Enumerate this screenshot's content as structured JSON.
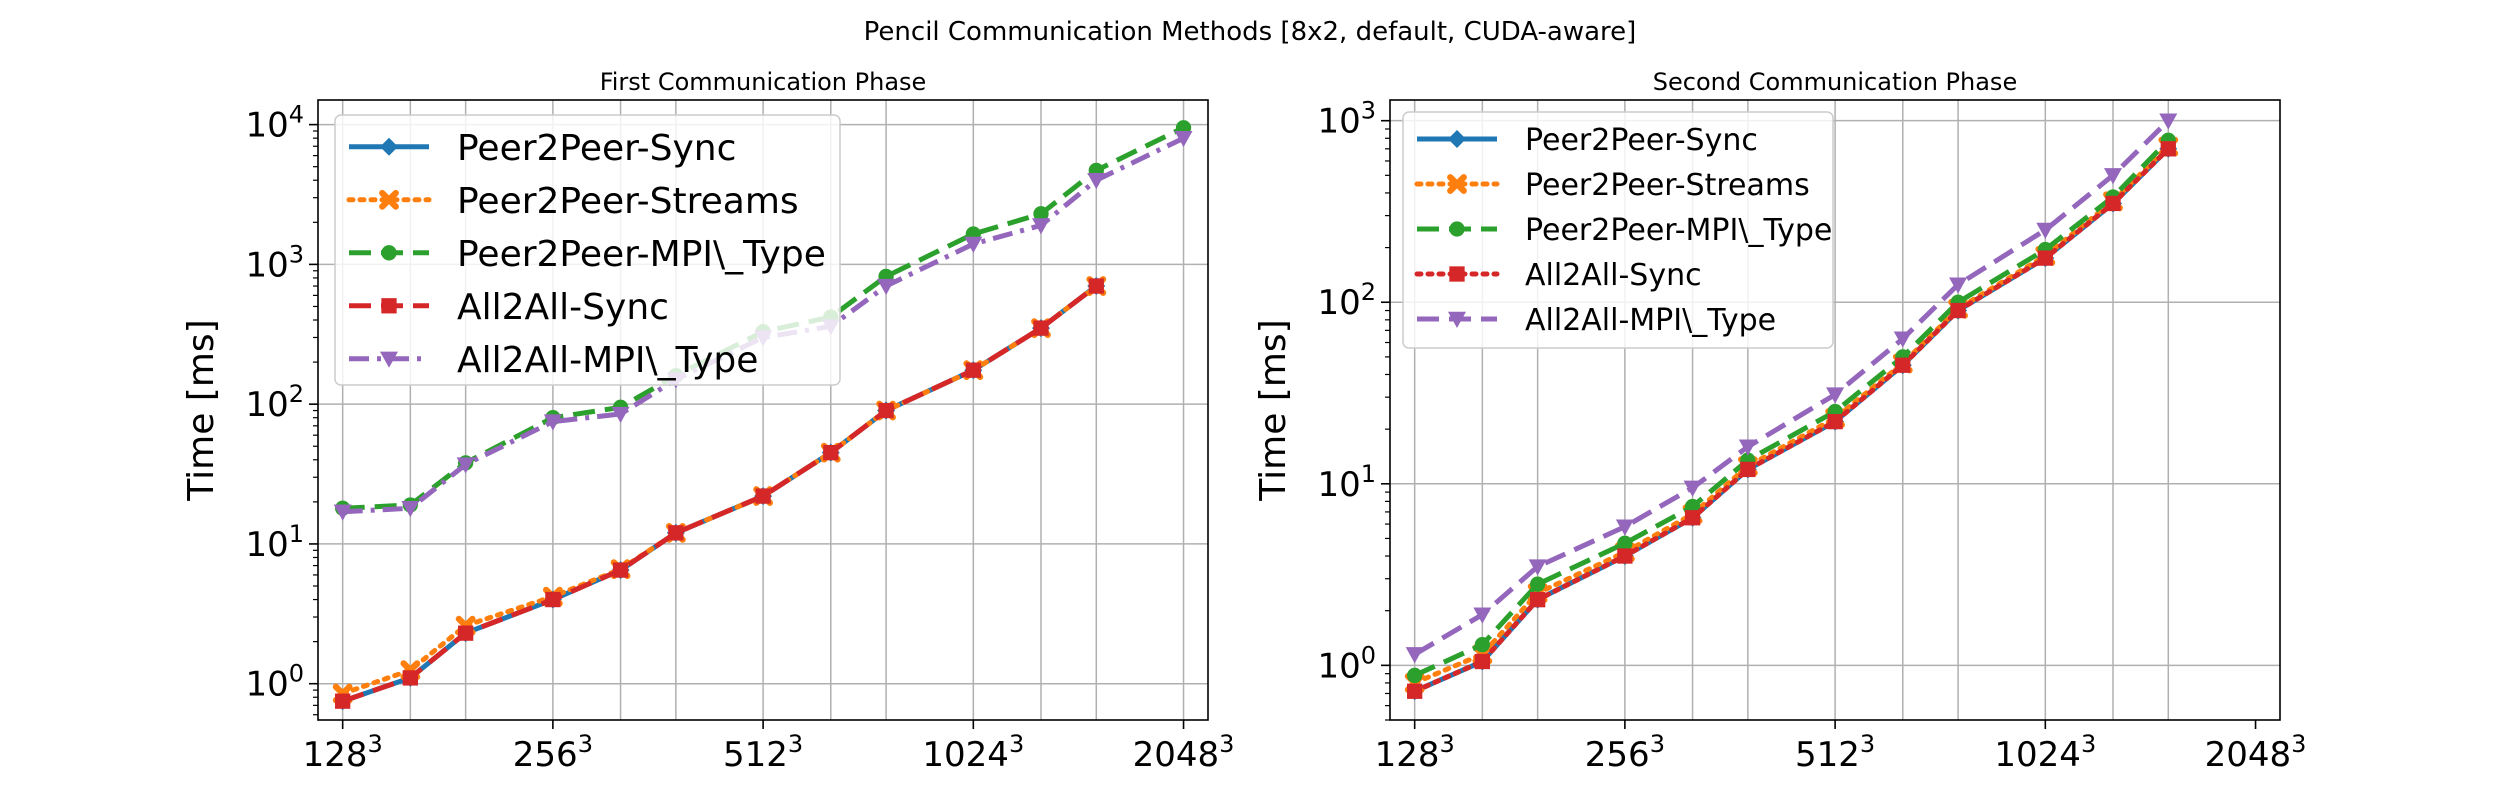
{
  "figure": {
    "suptitle": "Pencil Communication Methods [8x2, default, CUDA-aware]"
  },
  "colors": {
    "blue": "#1f77b4",
    "orange": "#ff7f0e",
    "green": "#2ca02c",
    "red": "#d62728",
    "purple": "#9467bd"
  },
  "chart_data": [
    {
      "type": "line",
      "title": "First Communication Phase",
      "xlabel": "",
      "ylabel": "Time [ms]",
      "yscale": "log",
      "ylim": [
        0.55,
        15000
      ],
      "xscale": "log2",
      "xlim": [
        118,
        2220
      ],
      "xticks": [
        128,
        256,
        512,
        1024,
        2048
      ],
      "xtick_labels": [
        "128",
        "256",
        "512",
        "1024",
        "2048"
      ],
      "xtick_superscript": "3",
      "yticks": [
        1,
        10,
        100,
        1000,
        10000
      ],
      "ytick_labels": [
        [
          "10",
          "0"
        ],
        [
          "10",
          "1"
        ],
        [
          "10",
          "2"
        ],
        [
          "10",
          "3"
        ],
        [
          "10",
          "4"
        ]
      ],
      "grid": true,
      "legend_position": "top-left",
      "x": [
        128,
        160,
        192,
        256,
        320,
        384,
        512,
        640,
        768,
        1024,
        1280,
        1536,
        2048
      ],
      "series": [
        {
          "name": "Peer2Peer-Sync",
          "style": "solid",
          "marker": "diamond",
          "color": "#1f77b4",
          "values": [
            0.75,
            1.1,
            2.3,
            4.0,
            6.5,
            12,
            22,
            45,
            90,
            175,
            350,
            700,
            null
          ]
        },
        {
          "name": "Peer2Peer-Streams",
          "style": "dotted",
          "marker": "x",
          "color": "#ff7f0e",
          "values": [
            0.85,
            1.25,
            2.6,
            4.2,
            6.6,
            12,
            22,
            45,
            90,
            175,
            350,
            700,
            null
          ]
        },
        {
          "name": "Peer2Peer-MPI\\_Type",
          "style": "dashed",
          "marker": "circle",
          "color": "#2ca02c",
          "values": [
            18,
            19,
            38,
            80,
            95,
            160,
            330,
            420,
            820,
            1650,
            2300,
            4700,
            9500
          ]
        },
        {
          "name": "All2All-Sync",
          "style": "dashed",
          "marker": "square",
          "color": "#d62728",
          "values": [
            0.75,
            1.1,
            2.3,
            4.0,
            6.5,
            12,
            22,
            45,
            90,
            175,
            350,
            700,
            null
          ]
        },
        {
          "name": "All2All-MPI\\_Type",
          "style": "dashdot",
          "marker": "triangle-down",
          "color": "#9467bd",
          "values": [
            17,
            18,
            37,
            75,
            85,
            150,
            300,
            360,
            700,
            1400,
            1900,
            4000,
            8000
          ]
        }
      ]
    },
    {
      "type": "line",
      "title": "Second Communication Phase",
      "xlabel": "",
      "ylabel": "Time [ms]",
      "yscale": "log",
      "ylim": [
        0.5,
        1300
      ],
      "xscale": "log2",
      "xlim": [
        118,
        2220
      ],
      "xticks": [
        128,
        256,
        512,
        1024,
        2048
      ],
      "xtick_labels": [
        "128",
        "256",
        "512",
        "1024",
        "2048"
      ],
      "xtick_superscript": "3",
      "yticks": [
        1,
        10,
        100,
        1000
      ],
      "ytick_labels": [
        [
          "10",
          "0"
        ],
        [
          "10",
          "1"
        ],
        [
          "10",
          "2"
        ],
        [
          "10",
          "3"
        ]
      ],
      "grid": true,
      "legend_position": "top-left",
      "x": [
        128,
        160,
        192,
        256,
        320,
        384,
        512,
        640,
        768,
        1024,
        1280,
        1536
      ],
      "series": [
        {
          "name": "Peer2Peer-Sync",
          "style": "solid",
          "marker": "diamond",
          "color": "#1f77b4",
          "values": [
            0.72,
            1.05,
            2.3,
            4.0,
            6.5,
            12,
            22,
            45,
            90,
            175,
            350,
            700
          ]
        },
        {
          "name": "Peer2Peer-Streams",
          "style": "dotted",
          "marker": "x",
          "color": "#ff7f0e",
          "values": [
            0.8,
            1.15,
            2.5,
            4.2,
            6.8,
            12.5,
            23,
            46,
            92,
            180,
            360,
            720
          ]
        },
        {
          "name": "Peer2Peer-MPI\\_Type",
          "style": "dashed",
          "marker": "circle",
          "color": "#2ca02c",
          "values": [
            0.88,
            1.3,
            2.8,
            4.7,
            7.5,
            13.5,
            25,
            50,
            100,
            195,
            380,
            780
          ]
        },
        {
          "name": "All2All-Sync",
          "style": "dotted",
          "marker": "square",
          "color": "#d62728",
          "values": [
            0.72,
            1.05,
            2.3,
            4.0,
            6.5,
            12,
            22,
            45,
            90,
            175,
            350,
            700
          ]
        },
        {
          "name": "All2All-MPI\\_Type",
          "style": "dashed",
          "marker": "triangle-down",
          "color": "#9467bd",
          "values": [
            1.15,
            1.9,
            3.5,
            5.8,
            9.5,
            16,
            31,
            63,
            125,
            250,
            500,
            1000
          ]
        }
      ]
    }
  ]
}
